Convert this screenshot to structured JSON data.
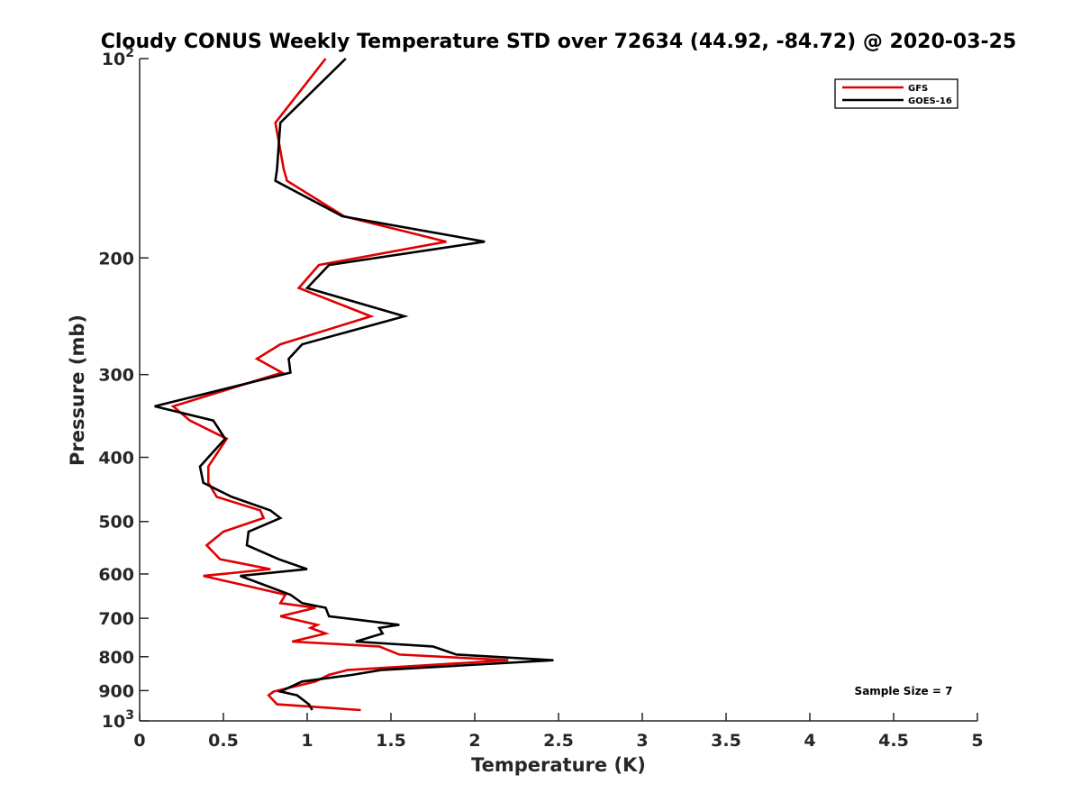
{
  "chart_data": {
    "type": "line",
    "title": "Cloudy CONUS Weekly Temperature STD over 72634 (44.92, -84.72) @ 2020-03-25",
    "xlabel": "Temperature (K)",
    "ylabel": "Pressure (mb)",
    "xlim": [
      0,
      5
    ],
    "ylim": [
      100,
      1000
    ],
    "yscale": "log",
    "y_reversed": true,
    "grid": false,
    "legend_position": "top-right",
    "x_ticks": [
      "0",
      "0.5",
      "1",
      "1.5",
      "2",
      "2.5",
      "3",
      "3.5",
      "4",
      "4.5",
      "5"
    ],
    "x_tick_values": [
      0,
      0.5,
      1,
      1.5,
      2,
      2.5,
      3,
      3.5,
      4,
      4.5,
      5
    ],
    "y_ticks": [
      {
        "value": 100,
        "base": "10",
        "exp": "2"
      },
      {
        "value": 200,
        "label": "200"
      },
      {
        "value": 300,
        "label": "300"
      },
      {
        "value": 400,
        "label": "400"
      },
      {
        "value": 500,
        "label": "500"
      },
      {
        "value": 600,
        "label": "600"
      },
      {
        "value": 700,
        "label": "700"
      },
      {
        "value": 800,
        "label": "800"
      },
      {
        "value": 900,
        "label": "900"
      },
      {
        "value": 1000,
        "base": "10",
        "exp": "3"
      }
    ],
    "annotation": "Sample Size = 7",
    "series": [
      {
        "name": "GFS",
        "color": "#e00000",
        "points": [
          [
            1.11,
            100
          ],
          [
            0.81,
            125
          ],
          [
            0.86,
            147
          ],
          [
            0.88,
            153
          ],
          [
            1.22,
            173
          ],
          [
            1.83,
            189
          ],
          [
            1.07,
            205
          ],
          [
            0.95,
            222
          ],
          [
            1.38,
            245
          ],
          [
            0.84,
            270
          ],
          [
            0.7,
            284
          ],
          [
            0.85,
            298
          ],
          [
            0.2,
            335
          ],
          [
            0.3,
            352
          ],
          [
            0.52,
            375
          ],
          [
            0.41,
            413
          ],
          [
            0.41,
            437
          ],
          [
            0.46,
            459
          ],
          [
            0.72,
            481
          ],
          [
            0.74,
            494
          ],
          [
            0.5,
            518
          ],
          [
            0.4,
            543
          ],
          [
            0.48,
            570
          ],
          [
            0.78,
            590
          ],
          [
            0.38,
            604
          ],
          [
            0.87,
            645
          ],
          [
            0.84,
            664
          ],
          [
            1.05,
            675
          ],
          [
            0.84,
            695
          ],
          [
            1.06,
            716
          ],
          [
            1.02,
            724
          ],
          [
            1.11,
            738
          ],
          [
            0.91,
            759
          ],
          [
            1.43,
            772
          ],
          [
            1.55,
            794
          ],
          [
            2.2,
            810
          ],
          [
            1.24,
            838
          ],
          [
            1.13,
            852
          ],
          [
            1.05,
            872
          ],
          [
            0.8,
            903
          ],
          [
            0.77,
            915
          ],
          [
            0.82,
            944
          ],
          [
            1.32,
            963
          ]
        ]
      },
      {
        "name": "GOES-16",
        "color": "#000000",
        "points": [
          [
            1.23,
            100
          ],
          [
            0.84,
            125
          ],
          [
            0.82,
            147
          ],
          [
            0.81,
            153
          ],
          [
            1.21,
            173
          ],
          [
            2.06,
            189
          ],
          [
            1.13,
            205
          ],
          [
            1.0,
            222
          ],
          [
            1.58,
            245
          ],
          [
            0.97,
            270
          ],
          [
            0.89,
            284
          ],
          [
            0.9,
            298
          ],
          [
            0.09,
            335
          ],
          [
            0.44,
            352
          ],
          [
            0.51,
            375
          ],
          [
            0.36,
            413
          ],
          [
            0.38,
            437
          ],
          [
            0.55,
            459
          ],
          [
            0.78,
            481
          ],
          [
            0.84,
            494
          ],
          [
            0.65,
            518
          ],
          [
            0.64,
            543
          ],
          [
            0.83,
            570
          ],
          [
            1.0,
            590
          ],
          [
            0.6,
            604
          ],
          [
            0.9,
            645
          ],
          [
            0.97,
            664
          ],
          [
            1.11,
            675
          ],
          [
            1.13,
            695
          ],
          [
            1.55,
            716
          ],
          [
            1.43,
            724
          ],
          [
            1.45,
            738
          ],
          [
            1.29,
            759
          ],
          [
            1.75,
            772
          ],
          [
            1.89,
            794
          ],
          [
            2.47,
            810
          ],
          [
            1.44,
            838
          ],
          [
            1.27,
            852
          ],
          [
            0.97,
            872
          ],
          [
            0.84,
            903
          ],
          [
            0.94,
            915
          ],
          [
            1.01,
            944
          ],
          [
            1.03,
            963
          ]
        ]
      }
    ]
  }
}
